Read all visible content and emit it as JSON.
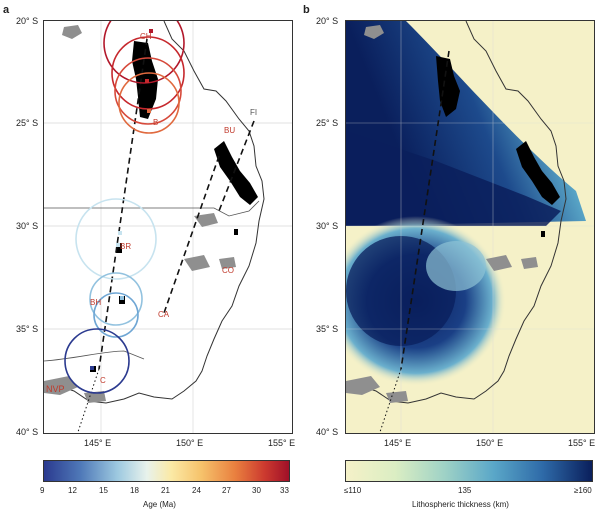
{
  "panels": {
    "a": {
      "letter": "a"
    },
    "b": {
      "letter": "b"
    }
  },
  "axes": {
    "lat_labels": [
      "20° S",
      "25° S",
      "30° S",
      "35° S",
      "40° S"
    ],
    "lon_labels": [
      "145° E",
      "150° E",
      "155° E"
    ]
  },
  "sites": {
    "CH": "CH",
    "B": "B",
    "BU": "BU",
    "FI": "FI",
    "BR": "BR",
    "CO": "CO",
    "BH": "BH",
    "CA": "CA",
    "C": "C",
    "NVP": "NVP"
  },
  "colorbar_a": {
    "ticks": [
      "9",
      "12",
      "15",
      "18",
      "21",
      "24",
      "27",
      "30",
      "33"
    ],
    "label": "Age (Ma)"
  },
  "colorbar_b": {
    "ticks": [
      "≤110",
      "135",
      "≥160"
    ],
    "label": "Lithospheric thickness (km)"
  },
  "colors": {
    "track": "#111111",
    "volcanic": "#000000",
    "grey_volcanic": "#8f8f8f",
    "label_red": "#c0392b",
    "thin_lith": "#f5f1c8",
    "thick_lith": "#0a1f5c"
  }
}
